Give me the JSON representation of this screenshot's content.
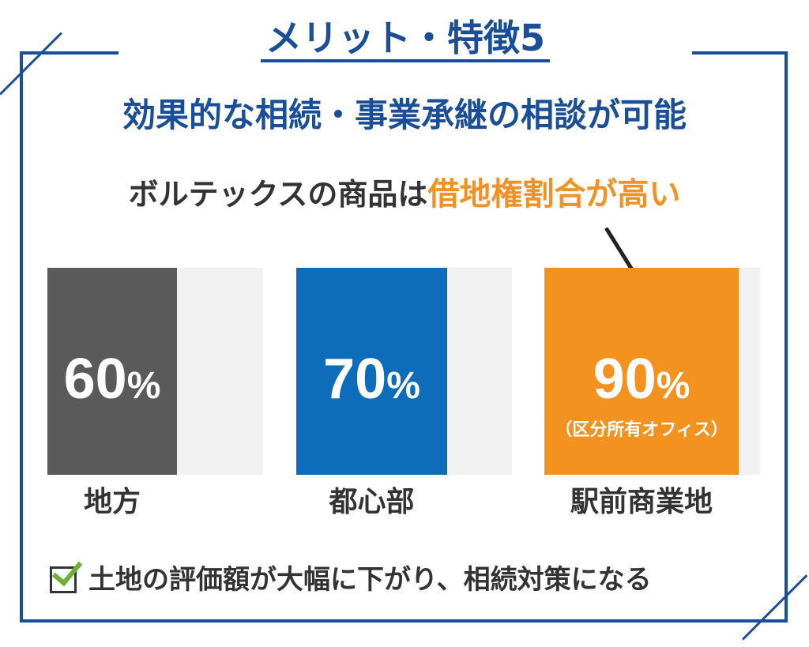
{
  "header": {
    "kicker": "メリット・特徴5",
    "headline": "効果的な相続・事業承継の相談が可能"
  },
  "subline": {
    "prefix": "ボルテックスの商品は",
    "accent": "借地権割合が高い"
  },
  "colors": {
    "frame": "#1a4e98",
    "bar_rural": "#5a5a5a",
    "bar_central": "#0e6dbb",
    "bar_station": "#f3921f",
    "accent_text": "#f39224",
    "bar_background": "#f1f1f1",
    "check": "#6ab233"
  },
  "chart_data": {
    "type": "bar",
    "categories": [
      "地方",
      "都心部",
      "駅前商業地"
    ],
    "values": [
      60,
      70,
      90
    ],
    "value_labels": [
      {
        "num": "60",
        "unit": "%"
      },
      {
        "num": "70",
        "unit": "%"
      },
      {
        "num": "90",
        "unit": "%"
      }
    ],
    "annotations": [
      "",
      "",
      "（区分所有オフィス）"
    ],
    "ylim": [
      0,
      100
    ]
  },
  "footer": {
    "check_icon": "checkbox-checked-icon",
    "text": "土地の評価額が大幅に下がり、相続対策になる"
  }
}
